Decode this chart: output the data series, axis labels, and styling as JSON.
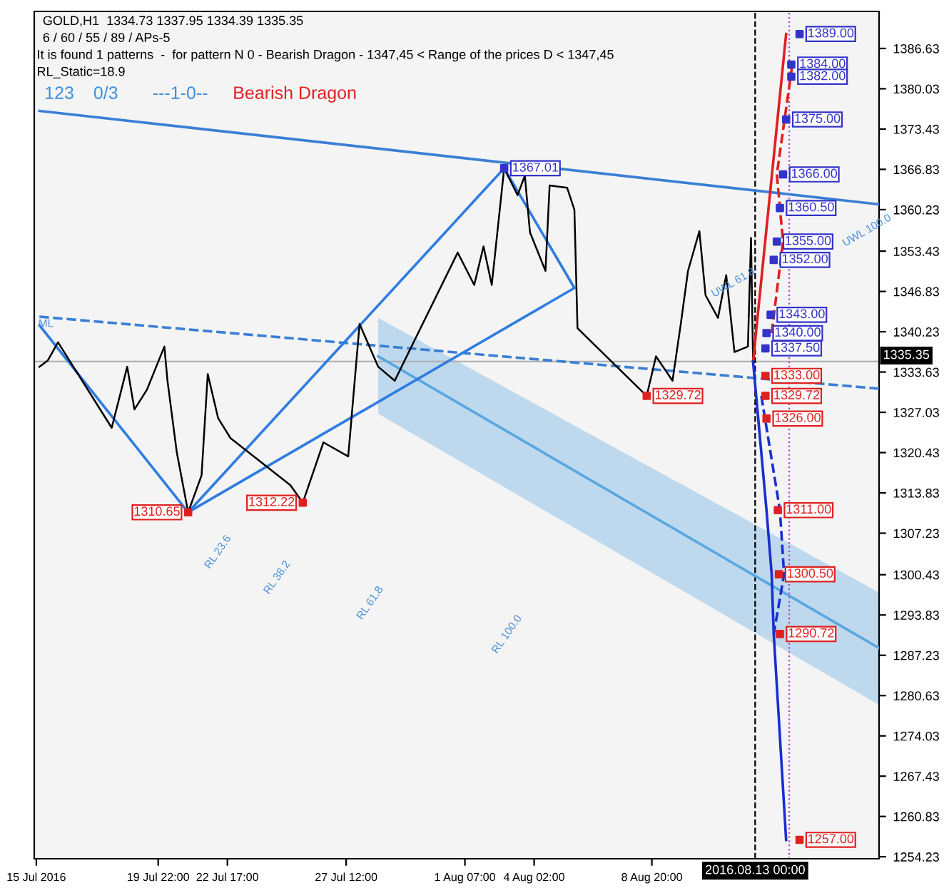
{
  "chart_data": {
    "type": "line",
    "title": "GOLD,H1  1334.73 1337.95 1334.39 1335.35",
    "subtitle": "6 / 60 / 55 / 89 / APs-5",
    "annotations": [
      "It is found 1 patterns  -  for pattern N 0 - Bearish Dragon - 1347,45 < Range of the prices D < 1347,45",
      "RL_Static=18.9",
      "123",
      "0/3",
      "---1-0--",
      "Bearish Dragon",
      "ML",
      "RL 23.6",
      "RL 38.2",
      "RL 61.8",
      "RL 100.0",
      "UWL 61.8",
      "UWL 100.0"
    ],
    "xlim": [
      "2016-07-14T22:00",
      "2016-08-18T00:00"
    ],
    "ylim": [
      1253.9,
      1392.7
    ],
    "xticks": [
      {
        "value": "2016-07-15",
        "label": "15 Jul 2016"
      },
      {
        "value": "2016-07-19T22:00",
        "label": "19 Jul 22:00"
      },
      {
        "value": "2016-07-22T17:00",
        "label": "22 Jul 17:00"
      },
      {
        "value": "2016-07-27T12:00",
        "label": "27 Jul 12:00"
      },
      {
        "value": "2016-08-01T07:00",
        "label": "1 Aug 07:00"
      },
      {
        "value": "2016-08-04T02:00",
        "label": "4 Aug 02:00"
      },
      {
        "value": "2016-08-08T20:00",
        "label": "8 Aug 20:00"
      }
    ],
    "yticks": [
      1254.23,
      1260.83,
      1267.43,
      1274.03,
      1280.63,
      1287.23,
      1293.83,
      1300.43,
      1307.23,
      1313.83,
      1320.43,
      1327.03,
      1333.63,
      1340.23,
      1346.83,
      1353.43,
      1360.23,
      1366.83,
      1373.43,
      1380.03,
      1386.63
    ],
    "ref_lines": [
      {
        "axis": "y",
        "value": 1335.35,
        "label": "1335.35",
        "color": "#b0b0b0",
        "line_style": "solid"
      },
      {
        "axis": "x",
        "value": "2016-08-13T00:00",
        "label": "2016.08.13 00:00",
        "color": "#000000",
        "line_style": "dashed"
      },
      {
        "axis": "x",
        "value": "2016-08-14T09:00",
        "color": "#b040d0",
        "line_style": "dotted"
      }
    ],
    "grid": false,
    "legend": false,
    "series": [
      {
        "color": "#5aa7e0",
        "x": [
          "2016-07-28T19:00",
          "2016-08-18T00:00"
        ],
        "values": [
          1336.2,
          1288.4
        ],
        "lower": [
          1326.8,
          1279.1
        ],
        "upper": [
          1342.5,
          1297.5
        ],
        "line_style": "solid"
      },
      {
        "color": "#3a7fd5",
        "x": [
          "2016-07-15T03:00",
          "2016-08-18T00:00"
        ],
        "values": [
          1376.4,
          1361.1
        ],
        "line_style": "solid"
      },
      {
        "color": "#3a7fd5",
        "x": [
          "2016-07-15T03:00",
          "2016-08-18T00:00"
        ],
        "values": [
          1342.7,
          1330.9
        ],
        "line_style": "dashed"
      },
      {
        "color": "#2f7de0",
        "x": [
          "2016-07-15T03:00",
          "2016-07-21T03:00",
          "2016-08-02T21:00",
          "2016-08-05T17:00",
          "2016-07-21T03:00"
        ],
        "values": [
          1341.3,
          1310.65,
          1367.01,
          1347.4,
          1310.65
        ],
        "line_style": "solid"
      },
      {
        "color": "#000000",
        "x": [
          "2016-07-15T03:00",
          "2016-07-15T11:00",
          "2016-07-15T21:00",
          "2016-07-18T01:00",
          "2016-07-18T09:00",
          "2016-07-18T16:00",
          "2016-07-18T23:00",
          "2016-07-19T11:00",
          "2016-07-20T04:00",
          "2016-07-20T07:00",
          "2016-07-20T16:00",
          "2016-07-21T03:00",
          "2016-07-21T16:00",
          "2016-07-21T22:00",
          "2016-07-22T08:00",
          "2016-07-22T20:00",
          "2016-07-25T06:00",
          "2016-07-25T18:00",
          "2016-07-26T14:00",
          "2016-07-27T14:00",
          "2016-07-28T01:00",
          "2016-07-28T19:00",
          "2016-07-29T11:00",
          "2016-08-01T00:00",
          "2016-08-01T16:00",
          "2016-08-02T01:00",
          "2016-08-02T09:00",
          "2016-08-02T21:00",
          "2016-08-03T10:00",
          "2016-08-03T17:00",
          "2016-08-03T22:00",
          "2016-08-04T13:00",
          "2016-08-04T17:00",
          "2016-08-05T10:00",
          "2016-08-05T17:00",
          "2016-08-05T20:00",
          "2016-08-08T15:00",
          "2016-08-09T00:00",
          "2016-08-09T16:00",
          "2016-08-10T00:00",
          "2016-08-10T07:00",
          "2016-08-10T18:00",
          "2016-08-11T00:00",
          "2016-08-11T12:00",
          "2016-08-11T20:00",
          "2016-08-12T04:00",
          "2016-08-12T17:00",
          "2016-08-12T20:00",
          "2016-08-12T22:00"
        ],
        "values": [
          1334.5,
          1335.5,
          1338.5,
          1324.5,
          1329.8,
          1334.5,
          1327.5,
          1330.7,
          1337.8,
          1332.2,
          1320.5,
          1310.65,
          1316.7,
          1333.3,
          1326.1,
          1322.8,
          1315.1,
          1312.22,
          1322.1,
          1319.8,
          1341.5,
          1334.5,
          1332.2,
          1353.2,
          1347.9,
          1354.2,
          1347.9,
          1367.01,
          1362.6,
          1365.8,
          1356.5,
          1350.2,
          1364.2,
          1363.8,
          1360.2,
          1340.8,
          1329.72,
          1336.2,
          1332.2,
          1341.5,
          1350.2,
          1356.7,
          1346.2,
          1342.5,
          1349.5,
          1336.9,
          1337.8,
          1355.6,
          1335.35
        ],
        "line_style": "solid"
      },
      {
        "color": "#e02020",
        "x": [
          "2016-08-12T22:00",
          "2016-08-14T06:00"
        ],
        "values": [
          1335.35,
          1389
        ],
        "line_style": "solid"
      },
      {
        "color": "#e02020",
        "x": [
          "2016-08-13T16:00",
          "2016-08-14T03:00",
          "2016-08-13T21:00",
          "2016-08-14T12:00"
        ],
        "values": [
          1340,
          1355,
          1366,
          1384
        ],
        "line_style": "dashed"
      },
      {
        "color": "#1a2fd0",
        "x": [
          "2016-08-12T22:00",
          "2016-08-13T11:00",
          "2016-08-13T16:00",
          "2016-08-13T18:00",
          "2016-08-14T06:00"
        ],
        "values": [
          1335.35,
          1311,
          1300.5,
          1290.72,
          1257
        ],
        "line_style": "solid"
      },
      {
        "color": "#1a2fd0",
        "x": [
          "2016-08-13T06:00",
          "2016-08-14T00:00",
          "2016-08-14T04:00",
          "2016-08-13T18:00"
        ],
        "values": [
          1329.7,
          1311,
          1300.5,
          1290.7
        ],
        "line_style": "dashed"
      },
      {
        "type": "scatter",
        "color": "#3333cc",
        "marker": "square",
        "x": [
          "2016-08-14T19:00",
          "2016-08-14T11:00",
          "2016-08-14T11:00",
          "2016-08-14T06:00",
          "2016-08-14T03:00",
          "2016-08-14T00:00",
          "2016-08-13T21:00",
          "2016-08-13T18:00",
          "2016-08-13T15:00",
          "2016-08-13T11:00",
          "2016-08-13T10:00",
          "2016-08-02T21:00"
        ],
        "values": [
          1389,
          1384,
          1382,
          1375,
          1366,
          1360.5,
          1355,
          1352,
          1343,
          1340,
          1337.5,
          1367.01
        ],
        "value_labels": [
          "1389.00",
          "1384.00",
          "1382.00",
          "1375.00",
          "1366.00",
          "1360.50",
          "1355.00",
          "1352.00",
          "1343.00",
          "1340.00",
          "1337.50",
          "1367.01"
        ]
      },
      {
        "type": "scatter",
        "color": "#e02020",
        "marker": "square",
        "x": [
          "2016-08-13T10:00",
          "2016-08-13T10:00",
          "2016-08-13T11:00",
          "2016-08-13T22:00",
          "2016-08-13T23:00",
          "2016-08-14T00:00",
          "2016-08-14T19:00",
          "2016-07-21T03:00",
          "2016-07-25T18:00",
          "2016-08-08T15:00"
        ],
        "values": [
          1333,
          1329.72,
          1326,
          1311,
          1300.5,
          1290.72,
          1257,
          1310.65,
          1312.22,
          1329.72
        ],
        "value_labels": [
          "1333.00",
          "1329.72",
          "1326.00",
          "1311.00",
          "1300.50",
          "1290.72",
          "1257.00",
          "1310.65",
          "1312.22",
          "1329.72"
        ]
      }
    ]
  }
}
